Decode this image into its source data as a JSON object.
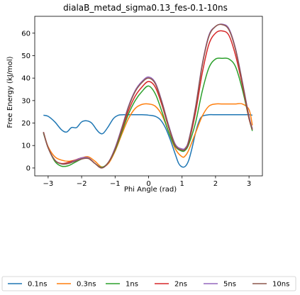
{
  "chart_data": {
    "type": "line",
    "title": "dialaB_metad_sigma0.13_fes-0.1-10ns",
    "xlabel": "Phi Angle (rad)",
    "ylabel": "Free Energy (kJ/mol)",
    "xlim": [
      -3.4,
      3.4
    ],
    "ylim": [
      -3.5,
      67.5
    ],
    "xticks": [
      -3,
      -2,
      -1,
      0,
      1,
      2,
      3
    ],
    "yticks": [
      0,
      10,
      20,
      30,
      40,
      50,
      60
    ],
    "grid": false,
    "legend_position": "bottom",
    "series": [
      {
        "name": "0.1ns",
        "color": "#1f77b4",
        "x": [
          -3.14,
          -3.0,
          -2.8,
          -2.6,
          -2.45,
          -2.3,
          -2.15,
          -2.0,
          -1.85,
          -1.7,
          -1.55,
          -1.45,
          -1.35,
          -1.2,
          -1.05,
          -0.9,
          -0.75,
          -0.6,
          -0.4,
          -0.2,
          0.0,
          0.2,
          0.35,
          0.5,
          0.65,
          0.8,
          0.9,
          1.0,
          1.1,
          1.2,
          1.3,
          1.4,
          1.5,
          1.6,
          1.8,
          2.0,
          2.2,
          2.4,
          2.6,
          2.8,
          3.0,
          3.1
        ],
        "y": [
          23.5,
          23.0,
          20.5,
          17.0,
          16.0,
          18.0,
          18.0,
          20.5,
          21.0,
          20.0,
          17.0,
          15.5,
          15.5,
          18.5,
          22.0,
          23.5,
          23.7,
          23.7,
          23.7,
          23.7,
          23.5,
          23.0,
          21.5,
          18.0,
          12.5,
          6.0,
          2.0,
          0.5,
          0.8,
          3.5,
          9.0,
          15.5,
          20.5,
          23.0,
          23.7,
          23.7,
          23.7,
          23.7,
          23.7,
          23.7,
          23.7,
          23.5
        ]
      },
      {
        "name": "0.3ns",
        "color": "#ff7f0e",
        "x": [
          -3.14,
          -3.0,
          -2.8,
          -2.6,
          -2.4,
          -2.2,
          -2.0,
          -1.8,
          -1.6,
          -1.4,
          -1.2,
          -1.0,
          -0.8,
          -0.6,
          -0.4,
          -0.2,
          0.0,
          0.2,
          0.4,
          0.6,
          0.8,
          1.0,
          1.1,
          1.2,
          1.4,
          1.6,
          1.8,
          2.0,
          2.2,
          2.4,
          2.6,
          2.8,
          3.0,
          3.1
        ],
        "y": [
          16.0,
          9.5,
          5.0,
          3.5,
          3.0,
          3.5,
          4.5,
          5.0,
          3.0,
          0.5,
          2.0,
          7.5,
          15.0,
          22.0,
          26.5,
          28.3,
          28.5,
          27.5,
          23.5,
          16.0,
          8.5,
          5.0,
          5.5,
          8.0,
          15.5,
          23.0,
          27.5,
          28.5,
          28.5,
          28.5,
          28.5,
          28.5,
          26.0,
          19.0
        ]
      },
      {
        "name": "1ns",
        "color": "#2ca02c",
        "x": [
          -3.14,
          -3.0,
          -2.8,
          -2.6,
          -2.4,
          -2.2,
          -2.0,
          -1.8,
          -1.6,
          -1.4,
          -1.2,
          -1.0,
          -0.8,
          -0.6,
          -0.4,
          -0.2,
          0.0,
          0.2,
          0.4,
          0.6,
          0.8,
          1.0,
          1.1,
          1.2,
          1.4,
          1.6,
          1.8,
          2.0,
          2.2,
          2.4,
          2.6,
          2.8,
          3.0,
          3.1
        ],
        "y": [
          15.5,
          9.0,
          3.0,
          0.8,
          1.0,
          2.5,
          4.0,
          4.5,
          2.0,
          0.3,
          2.5,
          8.0,
          16.0,
          24.0,
          30.0,
          34.0,
          36.5,
          33.0,
          25.0,
          16.0,
          9.5,
          7.5,
          8.0,
          10.5,
          20.0,
          34.0,
          44.5,
          48.5,
          48.8,
          48.5,
          45.0,
          35.0,
          22.0,
          16.5
        ]
      },
      {
        "name": "2ns",
        "color": "#d62728",
        "x": [
          -3.14,
          -3.0,
          -2.8,
          -2.6,
          -2.4,
          -2.2,
          -2.0,
          -1.8,
          -1.6,
          -1.4,
          -1.2,
          -1.0,
          -0.8,
          -0.6,
          -0.4,
          -0.2,
          0.0,
          0.2,
          0.4,
          0.6,
          0.8,
          1.0,
          1.1,
          1.2,
          1.4,
          1.6,
          1.8,
          2.0,
          2.2,
          2.4,
          2.6,
          2.8,
          3.0,
          3.1
        ],
        "y": [
          16.0,
          9.0,
          3.5,
          2.0,
          2.5,
          3.5,
          4.5,
          4.5,
          2.0,
          0.0,
          2.5,
          8.5,
          17.0,
          25.5,
          32.0,
          36.0,
          38.5,
          36.0,
          28.0,
          18.0,
          10.0,
          8.0,
          8.5,
          11.5,
          24.5,
          42.0,
          55.0,
          60.0,
          61.0,
          59.0,
          50.0,
          37.0,
          22.0,
          17.5
        ]
      },
      {
        "name": "5ns",
        "color": "#9467bd",
        "x": [
          -3.14,
          -3.0,
          -2.8,
          -2.6,
          -2.4,
          -2.2,
          -2.0,
          -1.8,
          -1.6,
          -1.4,
          -1.2,
          -1.0,
          -0.8,
          -0.6,
          -0.4,
          -0.2,
          0.0,
          0.2,
          0.4,
          0.6,
          0.8,
          1.0,
          1.1,
          1.2,
          1.4,
          1.6,
          1.8,
          2.0,
          2.2,
          2.4,
          2.6,
          2.8,
          3.0,
          3.1
        ],
        "y": [
          16.0,
          9.0,
          3.5,
          1.8,
          2.0,
          3.3,
          4.5,
          4.5,
          2.0,
          0.0,
          2.5,
          9.0,
          18.0,
          27.5,
          34.5,
          38.5,
          40.5,
          38.0,
          29.5,
          19.0,
          10.5,
          8.5,
          9.0,
          12.5,
          27.0,
          46.0,
          59.0,
          63.0,
          64.0,
          62.0,
          53.0,
          38.5,
          23.0,
          17.5
        ]
      },
      {
        "name": "10ns",
        "color": "#8c564b",
        "x": [
          -3.14,
          -3.0,
          -2.8,
          -2.6,
          -2.4,
          -2.2,
          -2.0,
          -1.8,
          -1.6,
          -1.4,
          -1.2,
          -1.0,
          -0.8,
          -0.6,
          -0.4,
          -0.2,
          0.0,
          0.2,
          0.4,
          0.6,
          0.8,
          1.0,
          1.1,
          1.2,
          1.4,
          1.6,
          1.8,
          2.0,
          2.2,
          2.4,
          2.6,
          2.8,
          3.0,
          3.1
        ],
        "y": [
          16.0,
          9.0,
          3.5,
          1.8,
          2.0,
          3.0,
          4.0,
          4.2,
          2.0,
          0.0,
          2.5,
          8.5,
          17.5,
          27.0,
          34.0,
          38.0,
          40.0,
          37.5,
          29.0,
          18.5,
          10.0,
          8.0,
          8.5,
          12.0,
          26.5,
          45.5,
          58.5,
          63.0,
          63.8,
          61.5,
          52.5,
          38.0,
          22.5,
          17.0
        ]
      }
    ]
  }
}
